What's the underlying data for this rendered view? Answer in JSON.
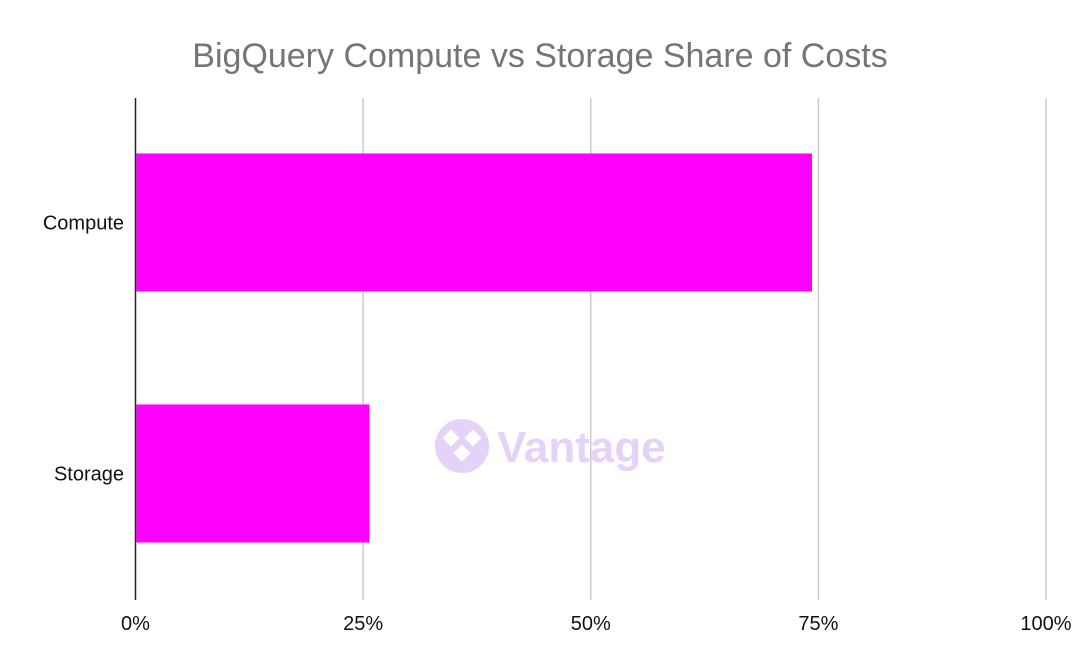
{
  "colors": {
    "bar": "#ff00ff",
    "gridline": "#cccccc",
    "axis": "#222222",
    "title": "#757575",
    "watermark": "#e4d2f8"
  },
  "watermark": {
    "text": "Vantage",
    "icon": "vantage-logo-icon"
  },
  "chart_data": {
    "type": "bar",
    "orientation": "horizontal",
    "title": "BigQuery Compute vs Storage Share of Costs",
    "categories": [
      "Compute",
      "Storage"
    ],
    "values": [
      74.3,
      25.7
    ],
    "value_unit": "%",
    "xlim": [
      0,
      100
    ],
    "x_ticks": [
      {
        "value": 0,
        "label": "0%"
      },
      {
        "value": 25,
        "label": "25%"
      },
      {
        "value": 50,
        "label": "50%"
      },
      {
        "value": 75,
        "label": "75%"
      },
      {
        "value": 100,
        "label": "100%"
      }
    ],
    "xlabel": "",
    "ylabel": "",
    "grid": "vertical",
    "legend": "none"
  }
}
